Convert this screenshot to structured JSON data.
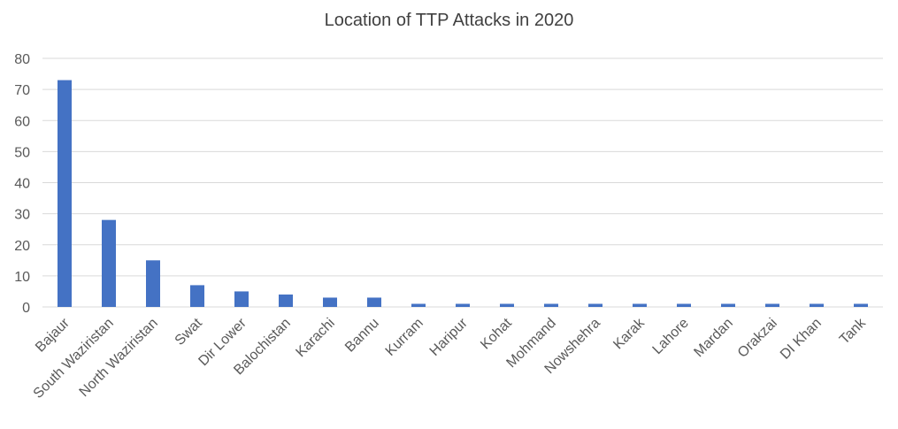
{
  "chart_data": {
    "type": "bar",
    "title": "Location of TTP Attacks in 2020",
    "xlabel": "",
    "ylabel": "",
    "ylim": [
      0,
      80
    ],
    "yticks": [
      0,
      10,
      20,
      30,
      40,
      50,
      60,
      70,
      80
    ],
    "grid": true,
    "legend": "none",
    "bar_color": "#4472C4",
    "grid_color": "#D9D9D9",
    "categories": [
      "Bajaur",
      "South Waziristan",
      "North Waziristan",
      "Swat",
      "Dir Lower",
      "Balochistan",
      "Karachi",
      "Bannu",
      "Kurram",
      "Haripur",
      "Kohat",
      "Mohmand",
      "Nowshehra",
      "Karak",
      "Lahore",
      "Mardan",
      "Orakzai",
      "DI Khan",
      "Tank"
    ],
    "values": [
      73,
      28,
      15,
      7,
      5,
      4,
      3,
      3,
      1,
      1,
      1,
      1,
      1,
      1,
      1,
      1,
      1,
      1,
      1
    ]
  }
}
